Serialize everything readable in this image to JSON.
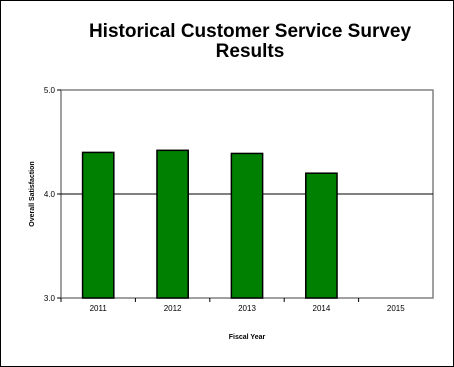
{
  "chart_data": {
    "type": "bar",
    "title": "Historical Customer Service Survey Results",
    "xlabel": "Fiscal Year",
    "ylabel": "Overall Satisfaction",
    "categories": [
      "2011",
      "2012",
      "2013",
      "2014",
      "2015"
    ],
    "values": [
      4.4,
      4.42,
      4.39,
      4.2,
      null
    ],
    "ylim": [
      3.0,
      5.0
    ],
    "yticks": [
      "3.0",
      "4.0",
      "5.0"
    ],
    "grid": true,
    "legend": "none",
    "bar_color": "#008000",
    "bar_edge_color": "#000000"
  }
}
